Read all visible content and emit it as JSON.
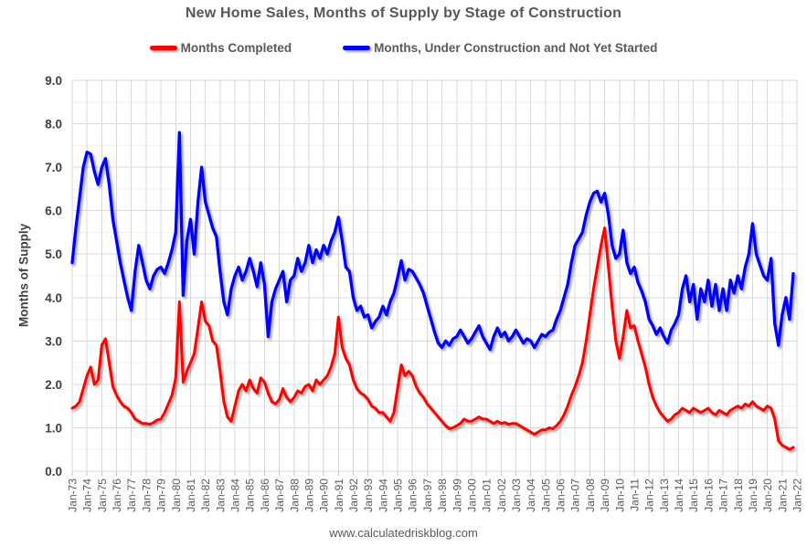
{
  "footer": "www.calculatedriskblog.com",
  "colors": {
    "background": "#FFFFFF",
    "completed_line": "#FF0000",
    "under_construction_line": "#0000FF",
    "grid_major": "#D9D9D9",
    "grid_minor": "#F2F2F2",
    "tick_stub": "#C9C9C9",
    "title_text": "#575757",
    "x_axis_text": "#595959",
    "y_axis_text": "#404040"
  },
  "chart_data": {
    "type": "line",
    "title": "New Home Sales, Months of Supply by Stage of Construction",
    "xlabel": "",
    "ylabel": "Months of Supply",
    "ylim": [
      0,
      9
    ],
    "y_tick_step": 1.0,
    "y_minor_grid_step": 0.5,
    "grid": true,
    "legend_position": "top",
    "x_start": 1973.0,
    "x_step": 0.25,
    "x_axis_years": [
      1973,
      2022
    ],
    "y_tick_labels": [
      "0.0",
      "1.0",
      "2.0",
      "3.0",
      "4.0",
      "5.0",
      "6.0",
      "7.0",
      "8.0",
      "9.0"
    ],
    "x_tick_labels": [
      "Jan-73",
      "Jan-74",
      "Jan-75",
      "Jan-76",
      "Jan-77",
      "Jan-78",
      "Jan-79",
      "Jan-80",
      "Jan-81",
      "Jan-82",
      "Jan-83",
      "Jan-84",
      "Jan-85",
      "Jan-86",
      "Jan-87",
      "Jan-88",
      "Jan-89",
      "Jan-90",
      "Jan-91",
      "Jan-92",
      "Jan-93",
      "Jan-94",
      "Jan-95",
      "Jan-96",
      "Jan-97",
      "Jan-98",
      "Jan-99",
      "Jan-00",
      "Jan-01",
      "Jan-02",
      "Jan-03",
      "Jan-04",
      "Jan-05",
      "Jan-06",
      "Jan-07",
      "Jan-08",
      "Jan-09",
      "Jan-10",
      "Jan-11",
      "Jan-12",
      "Jan-13",
      "Jan-14",
      "Jan-15",
      "Jan-16",
      "Jan-17",
      "Jan-18",
      "Jan-19",
      "Jan-20",
      "Jan-21",
      "Jan-22"
    ],
    "series": [
      {
        "id": "completed",
        "name": "Months Completed",
        "color": "#FF0000",
        "values": [
          1.45,
          1.5,
          1.6,
          1.9,
          2.2,
          2.4,
          2.0,
          2.1,
          2.9,
          3.05,
          2.5,
          1.95,
          1.75,
          1.6,
          1.5,
          1.45,
          1.35,
          1.2,
          1.15,
          1.1,
          1.1,
          1.08,
          1.12,
          1.18,
          1.2,
          1.35,
          1.55,
          1.75,
          2.15,
          3.9,
          2.05,
          2.3,
          2.5,
          2.7,
          3.3,
          3.9,
          3.45,
          3.35,
          3.0,
          2.9,
          2.3,
          1.6,
          1.25,
          1.15,
          1.5,
          1.85,
          2.0,
          1.85,
          2.1,
          1.9,
          1.8,
          2.15,
          2.05,
          1.8,
          1.6,
          1.55,
          1.65,
          1.9,
          1.7,
          1.6,
          1.7,
          1.85,
          1.8,
          1.95,
          2.0,
          1.85,
          2.1,
          2.0,
          2.1,
          2.2,
          2.4,
          2.7,
          3.55,
          2.85,
          2.6,
          2.45,
          2.1,
          1.9,
          1.8,
          1.75,
          1.65,
          1.5,
          1.45,
          1.35,
          1.35,
          1.25,
          1.15,
          1.35,
          1.9,
          2.45,
          2.2,
          2.3,
          2.2,
          1.95,
          1.8,
          1.7,
          1.55,
          1.45,
          1.35,
          1.25,
          1.15,
          1.05,
          0.98,
          1.0,
          1.05,
          1.1,
          1.2,
          1.15,
          1.15,
          1.2,
          1.25,
          1.2,
          1.2,
          1.15,
          1.1,
          1.15,
          1.1,
          1.12,
          1.08,
          1.1,
          1.1,
          1.05,
          1.0,
          0.95,
          0.9,
          0.85,
          0.9,
          0.95,
          0.95,
          1.0,
          0.98,
          1.05,
          1.15,
          1.3,
          1.5,
          1.75,
          1.95,
          2.2,
          2.5,
          3.0,
          3.6,
          4.2,
          4.7,
          5.2,
          5.6,
          4.7,
          3.8,
          3.0,
          2.6,
          3.1,
          3.7,
          3.3,
          3.35,
          3.0,
          2.7,
          2.4,
          2.0,
          1.7,
          1.5,
          1.35,
          1.25,
          1.15,
          1.2,
          1.3,
          1.35,
          1.45,
          1.4,
          1.35,
          1.45,
          1.4,
          1.35,
          1.4,
          1.45,
          1.35,
          1.3,
          1.4,
          1.35,
          1.3,
          1.4,
          1.45,
          1.5,
          1.45,
          1.55,
          1.5,
          1.6,
          1.5,
          1.45,
          1.4,
          1.5,
          1.45,
          1.2,
          0.7,
          0.6,
          0.55,
          0.5,
          0.55
        ]
      },
      {
        "id": "under-construction-not-started",
        "name": "Months, Under Construction and Not Yet Started",
        "color": "#0000FF",
        "values": [
          4.8,
          5.6,
          6.3,
          7.0,
          7.35,
          7.3,
          6.9,
          6.6,
          7.0,
          7.2,
          6.6,
          5.8,
          5.3,
          4.8,
          4.4,
          4.0,
          3.7,
          4.6,
          5.2,
          4.8,
          4.4,
          4.2,
          4.5,
          4.65,
          4.7,
          4.55,
          4.8,
          5.1,
          5.5,
          7.8,
          4.05,
          5.3,
          5.8,
          5.0,
          6.2,
          7.0,
          6.2,
          5.9,
          5.6,
          5.4,
          4.6,
          3.9,
          3.6,
          4.2,
          4.5,
          4.7,
          4.4,
          4.6,
          4.9,
          4.6,
          4.25,
          4.8,
          4.3,
          3.1,
          3.9,
          4.2,
          4.4,
          4.6,
          3.9,
          4.4,
          4.5,
          4.9,
          4.6,
          4.8,
          5.2,
          4.8,
          5.1,
          4.9,
          5.2,
          5.0,
          5.3,
          5.5,
          5.85,
          5.3,
          4.7,
          4.6,
          4.0,
          3.7,
          3.8,
          3.55,
          3.6,
          3.3,
          3.45,
          3.55,
          3.8,
          3.6,
          3.9,
          4.1,
          4.45,
          4.85,
          4.4,
          4.65,
          4.6,
          4.45,
          4.3,
          4.1,
          3.8,
          3.5,
          3.2,
          2.95,
          2.85,
          3.0,
          2.9,
          3.05,
          3.1,
          3.25,
          3.1,
          2.95,
          3.05,
          3.2,
          3.35,
          3.1,
          2.95,
          2.8,
          3.1,
          3.3,
          3.1,
          3.2,
          3.0,
          3.1,
          3.25,
          3.1,
          2.95,
          3.05,
          3.0,
          2.85,
          3.0,
          3.15,
          3.1,
          3.2,
          3.25,
          3.5,
          3.7,
          4.0,
          4.3,
          4.8,
          5.2,
          5.35,
          5.5,
          5.9,
          6.2,
          6.4,
          6.45,
          6.2,
          6.4,
          5.9,
          5.2,
          4.9,
          5.0,
          5.55,
          4.8,
          4.55,
          4.7,
          4.35,
          4.15,
          3.9,
          3.5,
          3.35,
          3.15,
          3.3,
          3.1,
          2.95,
          3.25,
          3.4,
          3.6,
          4.2,
          4.5,
          3.9,
          4.3,
          3.5,
          4.2,
          3.9,
          4.4,
          3.8,
          4.3,
          3.7,
          4.2,
          3.7,
          4.4,
          4.1,
          4.5,
          4.2,
          4.7,
          5.0,
          5.7,
          5.0,
          4.75,
          4.5,
          4.4,
          4.9,
          3.4,
          2.9,
          3.6,
          4.0,
          3.5,
          4.55
        ]
      }
    ]
  }
}
